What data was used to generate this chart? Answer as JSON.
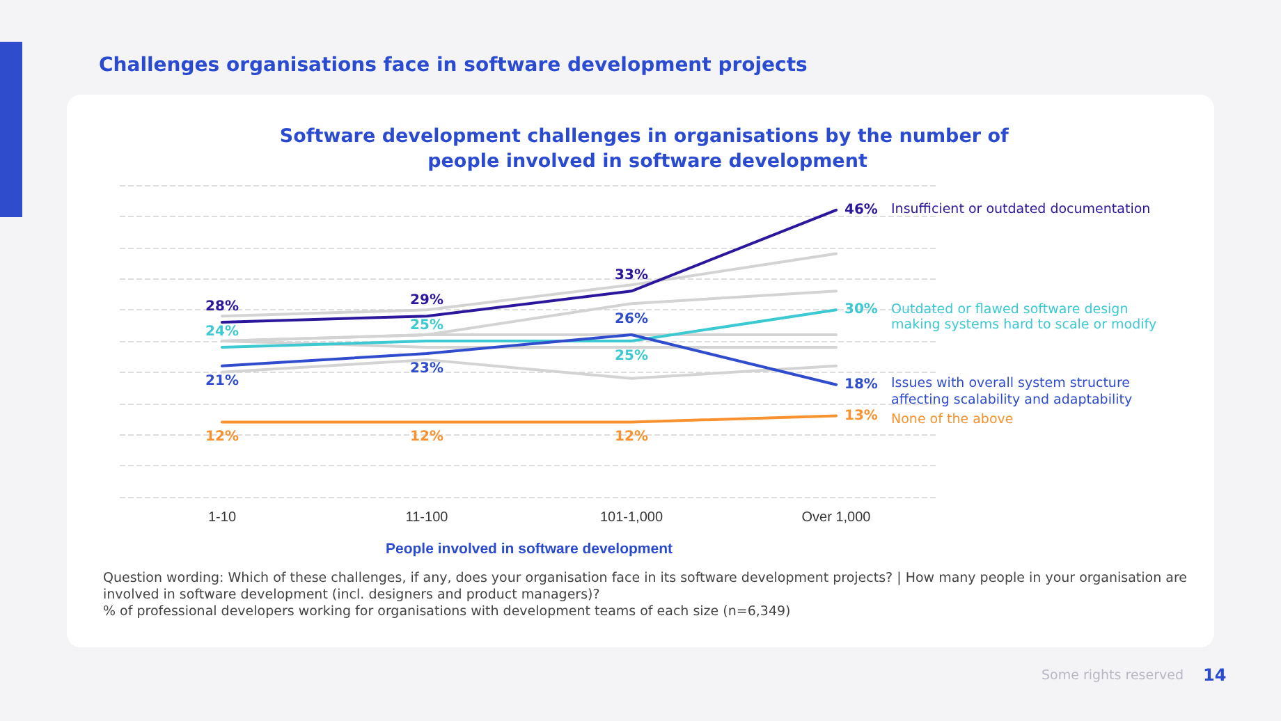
{
  "chart_data": {
    "type": "line",
    "title": "Challenges organisations face in software development projects",
    "subtitle": "Software development challenges in organisations by the number of people involved in software development",
    "xlabel": "People involved in software development",
    "categories": [
      "1-10",
      "11-100",
      "101-1,000",
      "Over 1,000"
    ],
    "ylim": [
      0,
      50
    ],
    "yticks": [
      {
        "value": 0,
        "label": null
      },
      {
        "value": 5,
        "label": null
      },
      {
        "value": 10,
        "label": null
      },
      {
        "value": 15,
        "label": null
      },
      {
        "value": 20,
        "label": null
      },
      {
        "value": 25,
        "label": null
      },
      {
        "value": 30,
        "label": null
      },
      {
        "value": 35,
        "label": null
      },
      {
        "value": 40,
        "label": null
      },
      {
        "value": 45,
        "label": null
      },
      {
        "value": 50,
        "label": null
      }
    ],
    "grid": "y",
    "legend": false,
    "marker": "none",
    "line_style": "solid",
    "series": [
      {
        "color": "#d3d3d3",
        "values": [
          29,
          30,
          34,
          39
        ]
      },
      {
        "color": "#d3d3d3",
        "values": [
          25,
          26,
          31,
          33
        ]
      },
      {
        "color": "#d3d3d3",
        "values": [
          25,
          26,
          26,
          26
        ]
      },
      {
        "color": "#d3d3d3",
        "values": [
          25,
          24,
          24,
          24
        ]
      },
      {
        "color": "#d3d3d3",
        "values": [
          20,
          22,
          19,
          21
        ]
      },
      {
        "name": "Insufficient or outdated documentation",
        "color": "#2b179c",
        "values": [
          28,
          29,
          33,
          46
        ],
        "value_labels": [
          "28%",
          "29%",
          "33%",
          "46%"
        ]
      },
      {
        "name": "Outdated or flawed software design making systems hard to scale or modify",
        "color": "#3cc9d2",
        "values": [
          24,
          25,
          25,
          30
        ],
        "value_labels": [
          "24%",
          "25%",
          "25%",
          "30%"
        ]
      },
      {
        "name": "Issues with overall system structure affecting scalability and adaptability",
        "color": "#2f4ccc",
        "values": [
          21,
          23,
          26,
          18
        ],
        "value_labels": [
          "21%",
          "23%",
          "26%",
          "18%"
        ]
      },
      {
        "name": "None of the above",
        "color": "#f7922f",
        "values": [
          12,
          12,
          12,
          13
        ],
        "value_labels": [
          "12%",
          "12%",
          "12%",
          "13%"
        ]
      }
    ],
    "annotations": [
      "Question wording: Which of these challenges, if any, does your organisation face in its software development projects? | How many people in your organisation are involved in software development (incl. designers and product managers)?",
      "% of professional developers working for organisations with development teams of each size (n=6,349)",
      "Some rights reserved",
      "14"
    ]
  }
}
